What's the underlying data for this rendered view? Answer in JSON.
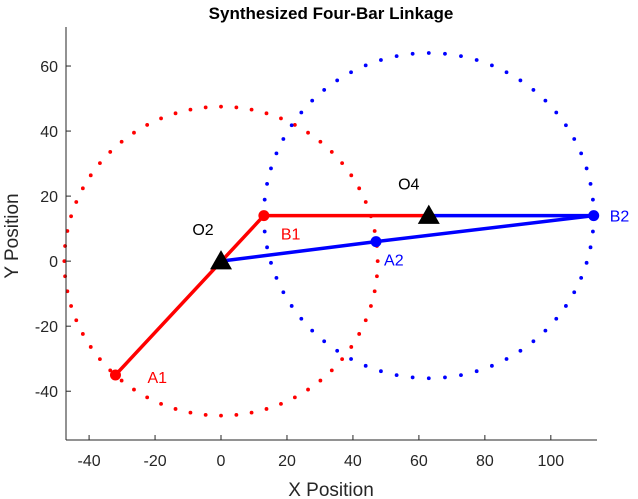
{
  "chart_data": {
    "type": "scatter",
    "title": "Synthesized Four-Bar Linkage",
    "xlabel": "X Position",
    "ylabel": "Y Position",
    "xlim": [
      -47,
      114
    ],
    "ylim": [
      -55,
      72
    ],
    "xticks": [
      -40,
      -20,
      0,
      20,
      40,
      60,
      80,
      100
    ],
    "yticks": [
      -40,
      -20,
      0,
      20,
      40,
      60
    ],
    "grid": false,
    "colors": {
      "red": "#ff0000",
      "blue": "#0000ff",
      "black": "#000000"
    },
    "circles": [
      {
        "name": "input-circle",
        "color": "red",
        "center": [
          0,
          0
        ],
        "radius": 47.5,
        "style": "dotted"
      },
      {
        "name": "output-circle",
        "color": "blue",
        "center": [
          63,
          14
        ],
        "radius": 50,
        "style": "dotted"
      }
    ],
    "links": [
      {
        "name": "link-red-crank",
        "color": "red",
        "x": [
          -32,
          13
        ],
        "y": [
          -35,
          14
        ]
      },
      {
        "name": "link-red-coupler",
        "color": "red",
        "x": [
          13,
          63
        ],
        "y": [
          14,
          14
        ]
      },
      {
        "name": "link-blue-coupler",
        "color": "blue",
        "x": [
          0,
          47
        ],
        "y": [
          0,
          6
        ]
      },
      {
        "name": "link-blue-rocker",
        "color": "blue",
        "x": [
          47,
          113
        ],
        "y": [
          6,
          14
        ]
      },
      {
        "name": "link-blue-top",
        "color": "blue",
        "x": [
          63,
          113
        ],
        "y": [
          14,
          14
        ]
      }
    ],
    "joints": [
      {
        "label": "A1",
        "x": -32,
        "y": -35,
        "color": "red"
      },
      {
        "label": "B1",
        "x": 13,
        "y": 14,
        "color": "red"
      },
      {
        "label": "A2",
        "x": 47,
        "y": 6,
        "color": "blue"
      },
      {
        "label": "B2",
        "x": 113,
        "y": 14,
        "color": "blue"
      }
    ],
    "pivots": [
      {
        "label": "O2",
        "x": 0,
        "y": 0
      },
      {
        "label": "O4",
        "x": 63,
        "y": 14
      }
    ]
  }
}
